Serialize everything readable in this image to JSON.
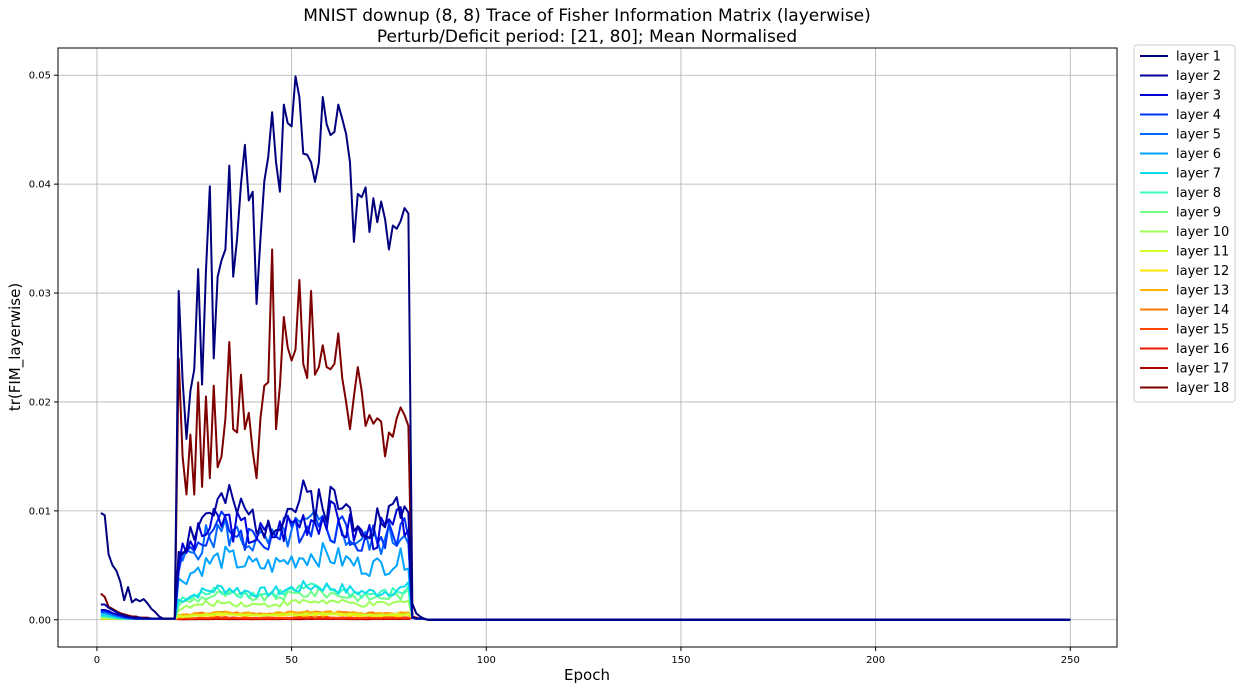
{
  "chart_data": {
    "type": "line",
    "title": "MNIST downup (8, 8) Trace of Fisher Information Matrix (layerwise)",
    "subtitle": "Perturb/Deficit period: [21, 80]; Mean Normalised",
    "xlabel": "Epoch",
    "ylabel": "tr(FIM_layerwise)",
    "xlim": [
      -10,
      262
    ],
    "ylim": [
      -0.0025,
      0.0525
    ],
    "x_ticks": [
      0,
      50,
      100,
      150,
      200,
      250
    ],
    "x_tick_labels": [
      "0",
      "50",
      "100",
      "150",
      "200",
      "250"
    ],
    "y_ticks": [
      0.0,
      0.01,
      0.02,
      0.03,
      0.04,
      0.05
    ],
    "y_tick_labels": [
      "0.00",
      "0.01",
      "0.02",
      "0.03",
      "0.04",
      "0.05"
    ],
    "grid": true,
    "legend_position": "outside-top-right",
    "x_start": 1,
    "x_end": 250,
    "series": [
      {
        "name": "layer 1",
        "color": "#00007f",
        "pre": [
          0.0098,
          0.0096,
          0.006,
          0.005,
          0.0045,
          0.0035,
          0.0018,
          0.003,
          0.0016,
          0.0019,
          0.0017,
          0.0019,
          0.0015,
          0.001,
          0.0007,
          0.0003,
          0.0001,
          0.0001,
          0.0001,
          0.0001
        ],
        "during": [
          0.0302,
          0.022,
          0.0166,
          0.021,
          0.023,
          0.0322,
          0.0216,
          0.032,
          0.0398,
          0.024,
          0.0315,
          0.033,
          0.034,
          0.0417,
          0.0315,
          0.035,
          0.04,
          0.0436,
          0.0385,
          0.0393,
          0.029,
          0.035,
          0.0403,
          0.0425,
          0.0466,
          0.042,
          0.0393,
          0.0473,
          0.0456,
          0.0453,
          0.0499,
          0.048,
          0.0428,
          0.0427,
          0.042,
          0.0402,
          0.042,
          0.048,
          0.0455,
          0.0445,
          0.0448,
          0.0473,
          0.046,
          0.0446,
          0.042,
          0.0347,
          0.0391,
          0.0388,
          0.0397,
          0.0356,
          0.0387,
          0.0365,
          0.0384,
          0.0368,
          0.034,
          0.0362,
          0.0359,
          0.0366,
          0.0378,
          0.0373
        ],
        "post": [
          0.0015,
          0.0006,
          0.0003,
          0.0001
        ]
      },
      {
        "name": "layer 2",
        "color": "#00009f",
        "seed": 2,
        "amp": 0.0145,
        "pre": [
          0.0014,
          0.0014,
          0.0011,
          0.0009,
          0.0007,
          0.0005,
          0.0004,
          0.0003,
          0.0002,
          0.0002,
          0.0002,
          0.0001,
          0.0001,
          0.0001,
          0.0001,
          0.0001,
          0.0001,
          0.0001,
          0.0001,
          0.0001
        ]
      },
      {
        "name": "layer 3",
        "color": "#0000d6",
        "seed": 3,
        "amp": 0.0125,
        "pre": [
          0.0009,
          0.0009,
          0.0008,
          0.0006,
          0.0005,
          0.0004,
          0.0003,
          0.0002,
          0.0002,
          0.0001,
          0.0001,
          0.0001,
          0.0001,
          0.0001,
          0.0001,
          0.0001,
          0.0001,
          0.0001,
          0.0001,
          0.0001
        ]
      },
      {
        "name": "layer 4",
        "color": "#0034ff",
        "seed": 4,
        "amp": 0.0118,
        "pre": [
          0.0008,
          0.0008,
          0.0007,
          0.0006,
          0.0005,
          0.0004,
          0.0003,
          0.0002,
          0.0002,
          0.0001,
          0.0001,
          0.0001,
          0.0001,
          0.0001,
          0.0001,
          0.0001,
          0.0001,
          0.0001,
          0.0001,
          0.0001
        ]
      },
      {
        "name": "layer 5",
        "color": "#0068ff",
        "seed": 5,
        "amp": 0.0112,
        "pre": [
          0.0007,
          0.0007,
          0.0006,
          0.0005,
          0.0004,
          0.0003,
          0.0002,
          0.0002,
          0.0001,
          0.0001,
          0.0001,
          0.0001,
          0.0001,
          0.0001,
          0.0001,
          0.0001,
          0.0001,
          0.0001,
          0.0001,
          0.0001
        ]
      },
      {
        "name": "layer 6",
        "color": "#00a4ff",
        "seed": 6,
        "amp": 0.0078,
        "pre": [
          0.0006,
          0.0006,
          0.0005,
          0.0004,
          0.0003,
          0.0002,
          0.0002,
          0.0001,
          0.0001,
          0.0001,
          0.0001,
          0.0001,
          0.0001,
          0.0001,
          0.0001,
          0.0001,
          0.0001,
          0.0001,
          0.0001,
          0.0001
        ]
      },
      {
        "name": "layer 7",
        "color": "#0ddbea",
        "seed": 7,
        "amp": 0.004,
        "pre": [
          0.0004,
          0.0004,
          0.0003,
          0.0003,
          0.0002,
          0.0002,
          0.0001,
          0.0001,
          0.0001,
          0.0001,
          0.0001,
          0.0001,
          0.0001,
          0.0001,
          0.0001,
          0.0001,
          0.0001,
          0.0001,
          0.0001,
          0.0001
        ]
      },
      {
        "name": "layer 8",
        "color": "#3dffba",
        "seed": 8,
        "amp": 0.0037,
        "pre": [
          0.0003,
          0.0003,
          0.0003,
          0.0002,
          0.0002,
          0.0001,
          0.0001,
          0.0001,
          0.0001,
          0.0001,
          0.0001,
          0.0001,
          0.0001,
          0.0001,
          0.0001,
          0.0001,
          0.0001,
          0.0001,
          0.0001,
          0.0001
        ]
      },
      {
        "name": "layer 9",
        "color": "#70ff86",
        "seed": 9,
        "amp": 0.0032,
        "pre": [
          0.0003,
          0.0003,
          0.0002,
          0.0002,
          0.0001,
          0.0001,
          0.0001,
          0.0001,
          0.0001,
          0.0001,
          0.0001,
          0.0001,
          0.0001,
          0.0001,
          0.0001,
          0.0001,
          0.0001,
          0.0001,
          0.0001,
          0.0001
        ]
      },
      {
        "name": "layer 10",
        "color": "#9fff57",
        "seed": 10,
        "amp": 0.0022,
        "pre": [
          0.0002,
          0.0002,
          0.0002,
          0.0001,
          0.0001,
          0.0001,
          0.0001,
          0.0001,
          0.0001,
          0.0001,
          0.0001,
          0.0001,
          0.0001,
          0.0001,
          0.0001,
          0.0001,
          0.0001,
          0.0001,
          0.0001,
          0.0001
        ]
      },
      {
        "name": "layer 11",
        "color": "#d0ff27",
        "seed": 11,
        "amp": 0.0007,
        "pre": [
          0.0001,
          0.0001,
          0.0001,
          0.0001,
          0.0001,
          0.0001,
          0.0001,
          0.0001,
          0.0001,
          0.0001,
          0.0001,
          0.0001,
          0.0001,
          0.0001,
          0.0001,
          0.0001,
          0.0001,
          0.0001,
          0.0001,
          0.0001
        ]
      },
      {
        "name": "layer 12",
        "color": "#ffe500",
        "seed": 12,
        "amp": 0.0006,
        "pre": [
          0.0001,
          0.0001,
          0.0001,
          0.0001,
          0.0001,
          0.0001,
          0.0001,
          0.0001,
          0.0001,
          0.0001,
          0.0001,
          0.0001,
          0.0001,
          0.0001,
          0.0001,
          0.0001,
          0.0001,
          0.0001,
          0.0001,
          0.0001
        ]
      },
      {
        "name": "layer 13",
        "color": "#ffb100",
        "seed": 13,
        "amp": 0.0009,
        "pre": [
          0.0001,
          0.0001,
          0.0001,
          0.0001,
          0.0001,
          0.0001,
          0.0001,
          0.0001,
          0.0001,
          0.0001,
          0.0001,
          0.0001,
          0.0001,
          0.0001,
          0.0001,
          0.0001,
          0.0001,
          0.0001,
          0.0001,
          0.0001
        ]
      },
      {
        "name": "layer 14",
        "color": "#ff7a00",
        "seed": 14,
        "amp": 0.0009,
        "pre": [
          0.0001,
          0.0001,
          0.0001,
          0.0001,
          0.0001,
          0.0001,
          0.0001,
          0.0001,
          0.0001,
          0.0001,
          0.0001,
          0.0001,
          0.0001,
          0.0001,
          0.0001,
          0.0001,
          0.0001,
          0.0001,
          0.0001,
          0.0001
        ]
      },
      {
        "name": "layer 15",
        "color": "#ff4600",
        "seed": 15,
        "amp": 0.0003,
        "pre": [
          0.0001,
          0.0001,
          0.0001,
          0.0001,
          0.0001,
          0.0001,
          0.0001,
          0.0001,
          0.0001,
          0.0001,
          0.0001,
          0.0001,
          0.0001,
          0.0001,
          0.0001,
          0.0001,
          0.0001,
          0.0001,
          0.0001,
          0.0001
        ]
      },
      {
        "name": "layer 16",
        "color": "#ed1800",
        "seed": 16,
        "amp": 0.0002,
        "pre": [
          0.0001,
          0.0001,
          0.0001,
          0.0001,
          0.0001,
          0.0001,
          0.0001,
          0.0001,
          0.0001,
          0.0001,
          0.0001,
          0.0001,
          0.0001,
          0.0001,
          0.0001,
          0.0001,
          0.0001,
          0.0001,
          0.0001,
          0.0001
        ]
      },
      {
        "name": "layer 17",
        "color": "#b20000",
        "seed": 17,
        "amp": 0.0001,
        "pre": [
          0.0001,
          0.0001,
          0.0001,
          0.0001,
          0.0001,
          0.0001,
          0.0001,
          0.0001,
          0.0001,
          0.0001,
          0.0001,
          0.0001,
          0.0001,
          0.0001,
          0.0001,
          0.0001,
          0.0001,
          0.0001,
          0.0001,
          0.0001
        ]
      },
      {
        "name": "layer 18",
        "color": "#7f0000",
        "pre": [
          0.0024,
          0.0021,
          0.0012,
          0.001,
          0.0008,
          0.0006,
          0.0005,
          0.0004,
          0.0003,
          0.0003,
          0.0002,
          0.0002,
          0.0002,
          0.0001,
          0.0001,
          0.0001,
          0.0001,
          0.0001,
          0.0001,
          0.0001
        ],
        "during": [
          0.024,
          0.015,
          0.0115,
          0.017,
          0.0115,
          0.0218,
          0.0122,
          0.0205,
          0.013,
          0.0215,
          0.014,
          0.015,
          0.0185,
          0.0255,
          0.0175,
          0.0172,
          0.0225,
          0.0175,
          0.019,
          0.0155,
          0.013,
          0.0185,
          0.0215,
          0.0218,
          0.034,
          0.0175,
          0.0215,
          0.0278,
          0.025,
          0.0238,
          0.0248,
          0.0312,
          0.0235,
          0.0222,
          0.0302,
          0.0225,
          0.0232,
          0.0252,
          0.0232,
          0.023,
          0.0235,
          0.0263,
          0.0222,
          0.02,
          0.0175,
          0.0205,
          0.0232,
          0.021,
          0.0178,
          0.0188,
          0.018,
          0.0185,
          0.0182,
          0.015,
          0.0172,
          0.0168,
          0.0185,
          0.0195,
          0.0188,
          0.0178
        ],
        "post": [
          0.0003,
          0.0002,
          0.0001,
          0.0001
        ]
      }
    ]
  }
}
